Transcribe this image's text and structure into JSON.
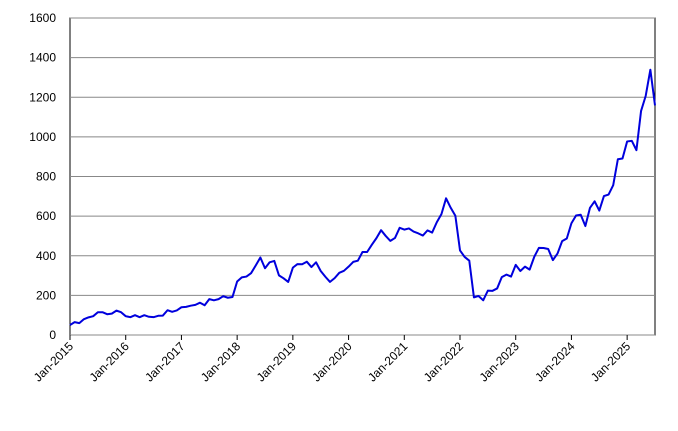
{
  "chart_data": {
    "type": "line",
    "x": [
      "2015-01",
      "2015-02",
      "2015-03",
      "2015-04",
      "2015-05",
      "2015-06",
      "2015-07",
      "2015-08",
      "2015-09",
      "2015-10",
      "2015-11",
      "2015-12",
      "2016-01",
      "2016-02",
      "2016-03",
      "2016-04",
      "2016-05",
      "2016-06",
      "2016-07",
      "2016-08",
      "2016-09",
      "2016-10",
      "2016-11",
      "2016-12",
      "2017-01",
      "2017-02",
      "2017-03",
      "2017-04",
      "2017-05",
      "2017-06",
      "2017-07",
      "2017-08",
      "2017-09",
      "2017-10",
      "2017-11",
      "2017-12",
      "2018-01",
      "2018-02",
      "2018-03",
      "2018-04",
      "2018-05",
      "2018-06",
      "2018-07",
      "2018-08",
      "2018-09",
      "2018-10",
      "2018-11",
      "2018-12",
      "2019-01",
      "2019-02",
      "2019-03",
      "2019-04",
      "2019-05",
      "2019-06",
      "2019-07",
      "2019-08",
      "2019-09",
      "2019-10",
      "2019-11",
      "2019-12",
      "2020-01",
      "2020-02",
      "2020-03",
      "2020-04",
      "2020-05",
      "2020-06",
      "2020-07",
      "2020-08",
      "2020-09",
      "2020-10",
      "2020-11",
      "2020-12",
      "2021-01",
      "2021-02",
      "2021-03",
      "2021-04",
      "2021-05",
      "2021-06",
      "2021-07",
      "2021-08",
      "2021-09",
      "2021-10",
      "2021-11",
      "2021-12",
      "2022-01",
      "2022-02",
      "2022-03",
      "2022-04",
      "2022-05",
      "2022-06",
      "2022-07",
      "2022-08",
      "2022-09",
      "2022-10",
      "2022-11",
      "2022-12",
      "2023-01",
      "2023-02",
      "2023-03",
      "2023-04",
      "2023-05",
      "2023-06",
      "2023-07",
      "2023-08",
      "2023-09",
      "2023-10",
      "2023-11",
      "2023-12",
      "2024-01",
      "2024-02",
      "2024-03",
      "2024-04",
      "2024-05",
      "2024-06",
      "2024-07",
      "2024-08",
      "2024-09",
      "2024-10",
      "2024-11",
      "2024-12",
      "2025-01",
      "2025-02",
      "2025-03",
      "2025-04",
      "2025-05",
      "2025-06",
      "2025-07"
    ],
    "series": [
      {
        "color": "#0000dd",
        "values": [
          50,
          65,
          60,
          80,
          89,
          95,
          115,
          115,
          105,
          108,
          123,
          115,
          95,
          90,
          100,
          90,
          100,
          92,
          90,
          97,
          98,
          125,
          117,
          124,
          140,
          142,
          148,
          152,
          163,
          150,
          181,
          175,
          181,
          196,
          188,
          192,
          270,
          291,
          295,
          312,
          351,
          391,
          337,
          367,
          374,
          301,
          286,
          268,
          340,
          358,
          357,
          370,
          343,
          367,
          323,
          294,
          268,
          287,
          314,
          324,
          345,
          369,
          375,
          419,
          419,
          455,
          489,
          529,
          500,
          475,
          490,
          541,
          532,
          538,
          522,
          513,
          502,
          528,
          517,
          569,
          610,
          690,
          642,
          602,
          427,
          394,
          375,
          190,
          197,
          175,
          224,
          223,
          235,
          292,
          305,
          295,
          354,
          323,
          345,
          330,
          395,
          440,
          439,
          434,
          378,
          411,
          474,
          487,
          564,
          603,
          607,
          550,
          642,
          675,
          628,
          701,
          709,
          756,
          887,
          891,
          977,
          980,
          933,
          1131,
          1207,
          1339,
          1159
        ]
      }
    ],
    "xlim": [
      "2015-01",
      "2025-07"
    ],
    "xticks": [
      {
        "value": "2015-01",
        "label": "Jan-2015"
      },
      {
        "value": "2016-01",
        "label": "Jan-2016"
      },
      {
        "value": "2017-01",
        "label": "Jan-2017"
      },
      {
        "value": "2018-01",
        "label": "Jan-2018"
      },
      {
        "value": "2019-01",
        "label": "Jan-2019"
      },
      {
        "value": "2020-01",
        "label": "Jan-2020"
      },
      {
        "value": "2021-01",
        "label": "Jan-2021"
      },
      {
        "value": "2022-01",
        "label": "Jan-2022"
      },
      {
        "value": "2023-01",
        "label": "Jan-2023"
      },
      {
        "value": "2024-01",
        "label": "Jan-2024"
      },
      {
        "value": "2025-01",
        "label": "Jan-2025"
      }
    ],
    "ylim": [
      0,
      1600
    ],
    "yticks": [
      0,
      200,
      400,
      600,
      800,
      1000,
      1200,
      1400,
      1600
    ],
    "grid": true
  }
}
